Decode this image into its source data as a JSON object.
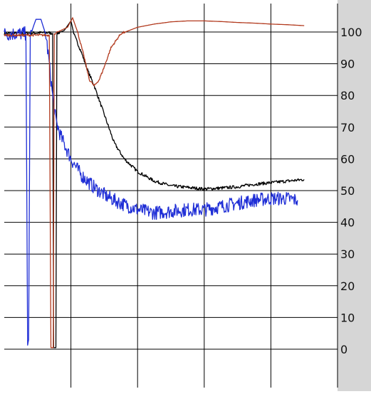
{
  "colors": {
    "background": "#ffffff",
    "right_panel": "#d6d6d6",
    "grid": "#000000",
    "black_series": "#000000",
    "blue_series": "#1f2ed6",
    "red_series": "#b23a1e"
  },
  "chart_data": {
    "type": "line",
    "title": "",
    "xlabel": "",
    "ylabel": "",
    "ylim": [
      -10,
      110
    ],
    "xlim": [
      0,
      10
    ],
    "grid": true,
    "y_ticks": [
      0,
      10,
      20,
      30,
      40,
      50,
      60,
      70,
      80,
      90,
      100
    ],
    "y_tick_labels": [
      "0",
      "10",
      "20",
      "30",
      "40",
      "50",
      "60",
      "70",
      "80",
      "90",
      "100"
    ],
    "x_gridlines": [
      2,
      4,
      6,
      8,
      10
    ],
    "legend": "none",
    "series": [
      {
        "color_key": "black_series",
        "noise": 0.5,
        "points": [
          [
            0.0,
            99.5
          ],
          [
            1.3,
            99.8
          ],
          [
            1.45,
            99.6
          ],
          [
            1.48,
            0.5
          ],
          [
            1.55,
            0.5
          ],
          [
            1.58,
            99.5
          ],
          [
            1.8,
            100.5
          ],
          [
            2.0,
            103.5
          ],
          [
            2.1,
            99
          ],
          [
            2.3,
            94
          ],
          [
            2.5,
            88
          ],
          [
            2.7,
            83
          ],
          [
            2.9,
            77
          ],
          [
            3.1,
            71
          ],
          [
            3.3,
            65
          ],
          [
            3.6,
            60
          ],
          [
            4.0,
            56
          ],
          [
            4.5,
            53
          ],
          [
            5.0,
            51.5
          ],
          [
            5.5,
            51
          ],
          [
            6.0,
            50.5
          ],
          [
            6.5,
            50.8
          ],
          [
            7.0,
            51.2
          ],
          [
            7.5,
            52
          ],
          [
            8.0,
            52.5
          ],
          [
            8.5,
            53
          ],
          [
            9.0,
            53.5
          ]
        ]
      },
      {
        "color_key": "blue_series",
        "noise": 2.2,
        "points": [
          [
            0.0,
            99.4
          ],
          [
            0.65,
            99.5
          ],
          [
            0.7,
            3
          ],
          [
            0.73,
            3
          ],
          [
            0.78,
            98
          ],
          [
            0.85,
            101
          ],
          [
            0.95,
            104
          ],
          [
            1.1,
            104
          ],
          [
            1.25,
            99
          ],
          [
            1.35,
            90
          ],
          [
            1.45,
            80
          ],
          [
            1.55,
            72
          ],
          [
            1.7,
            67
          ],
          [
            2.0,
            60
          ],
          [
            2.3,
            55
          ],
          [
            2.7,
            51
          ],
          [
            3.1,
            48
          ],
          [
            3.5,
            46
          ],
          [
            4.0,
            44
          ],
          [
            4.5,
            43
          ],
          [
            5.0,
            43.5
          ],
          [
            5.5,
            44
          ],
          [
            6.0,
            44
          ],
          [
            6.5,
            45
          ],
          [
            7.0,
            46
          ],
          [
            7.5,
            47
          ],
          [
            8.0,
            47.5
          ],
          [
            8.5,
            47.5
          ],
          [
            8.8,
            47
          ]
        ]
      },
      {
        "color_key": "red_series",
        "noise": 0.35,
        "points": [
          [
            0.0,
            99.0
          ],
          [
            1.35,
            99.0
          ],
          [
            1.4,
            0.5
          ],
          [
            1.47,
            0.5
          ],
          [
            1.5,
            99.5
          ],
          [
            1.7,
            100.5
          ],
          [
            1.9,
            101.5
          ],
          [
            2.05,
            104.5
          ],
          [
            2.2,
            100
          ],
          [
            2.4,
            92
          ],
          [
            2.55,
            85
          ],
          [
            2.7,
            83
          ],
          [
            2.85,
            85
          ],
          [
            3.0,
            89
          ],
          [
            3.2,
            95
          ],
          [
            3.5,
            99.5
          ],
          [
            4.0,
            101.5
          ],
          [
            4.5,
            102.5
          ],
          [
            5.0,
            103.2
          ],
          [
            5.5,
            103.5
          ],
          [
            6.0,
            103.5
          ],
          [
            6.5,
            103.3
          ],
          [
            7.0,
            103
          ],
          [
            7.5,
            102.8
          ],
          [
            8.0,
            102.5
          ],
          [
            8.5,
            102.3
          ],
          [
            9.0,
            102
          ]
        ]
      }
    ]
  }
}
